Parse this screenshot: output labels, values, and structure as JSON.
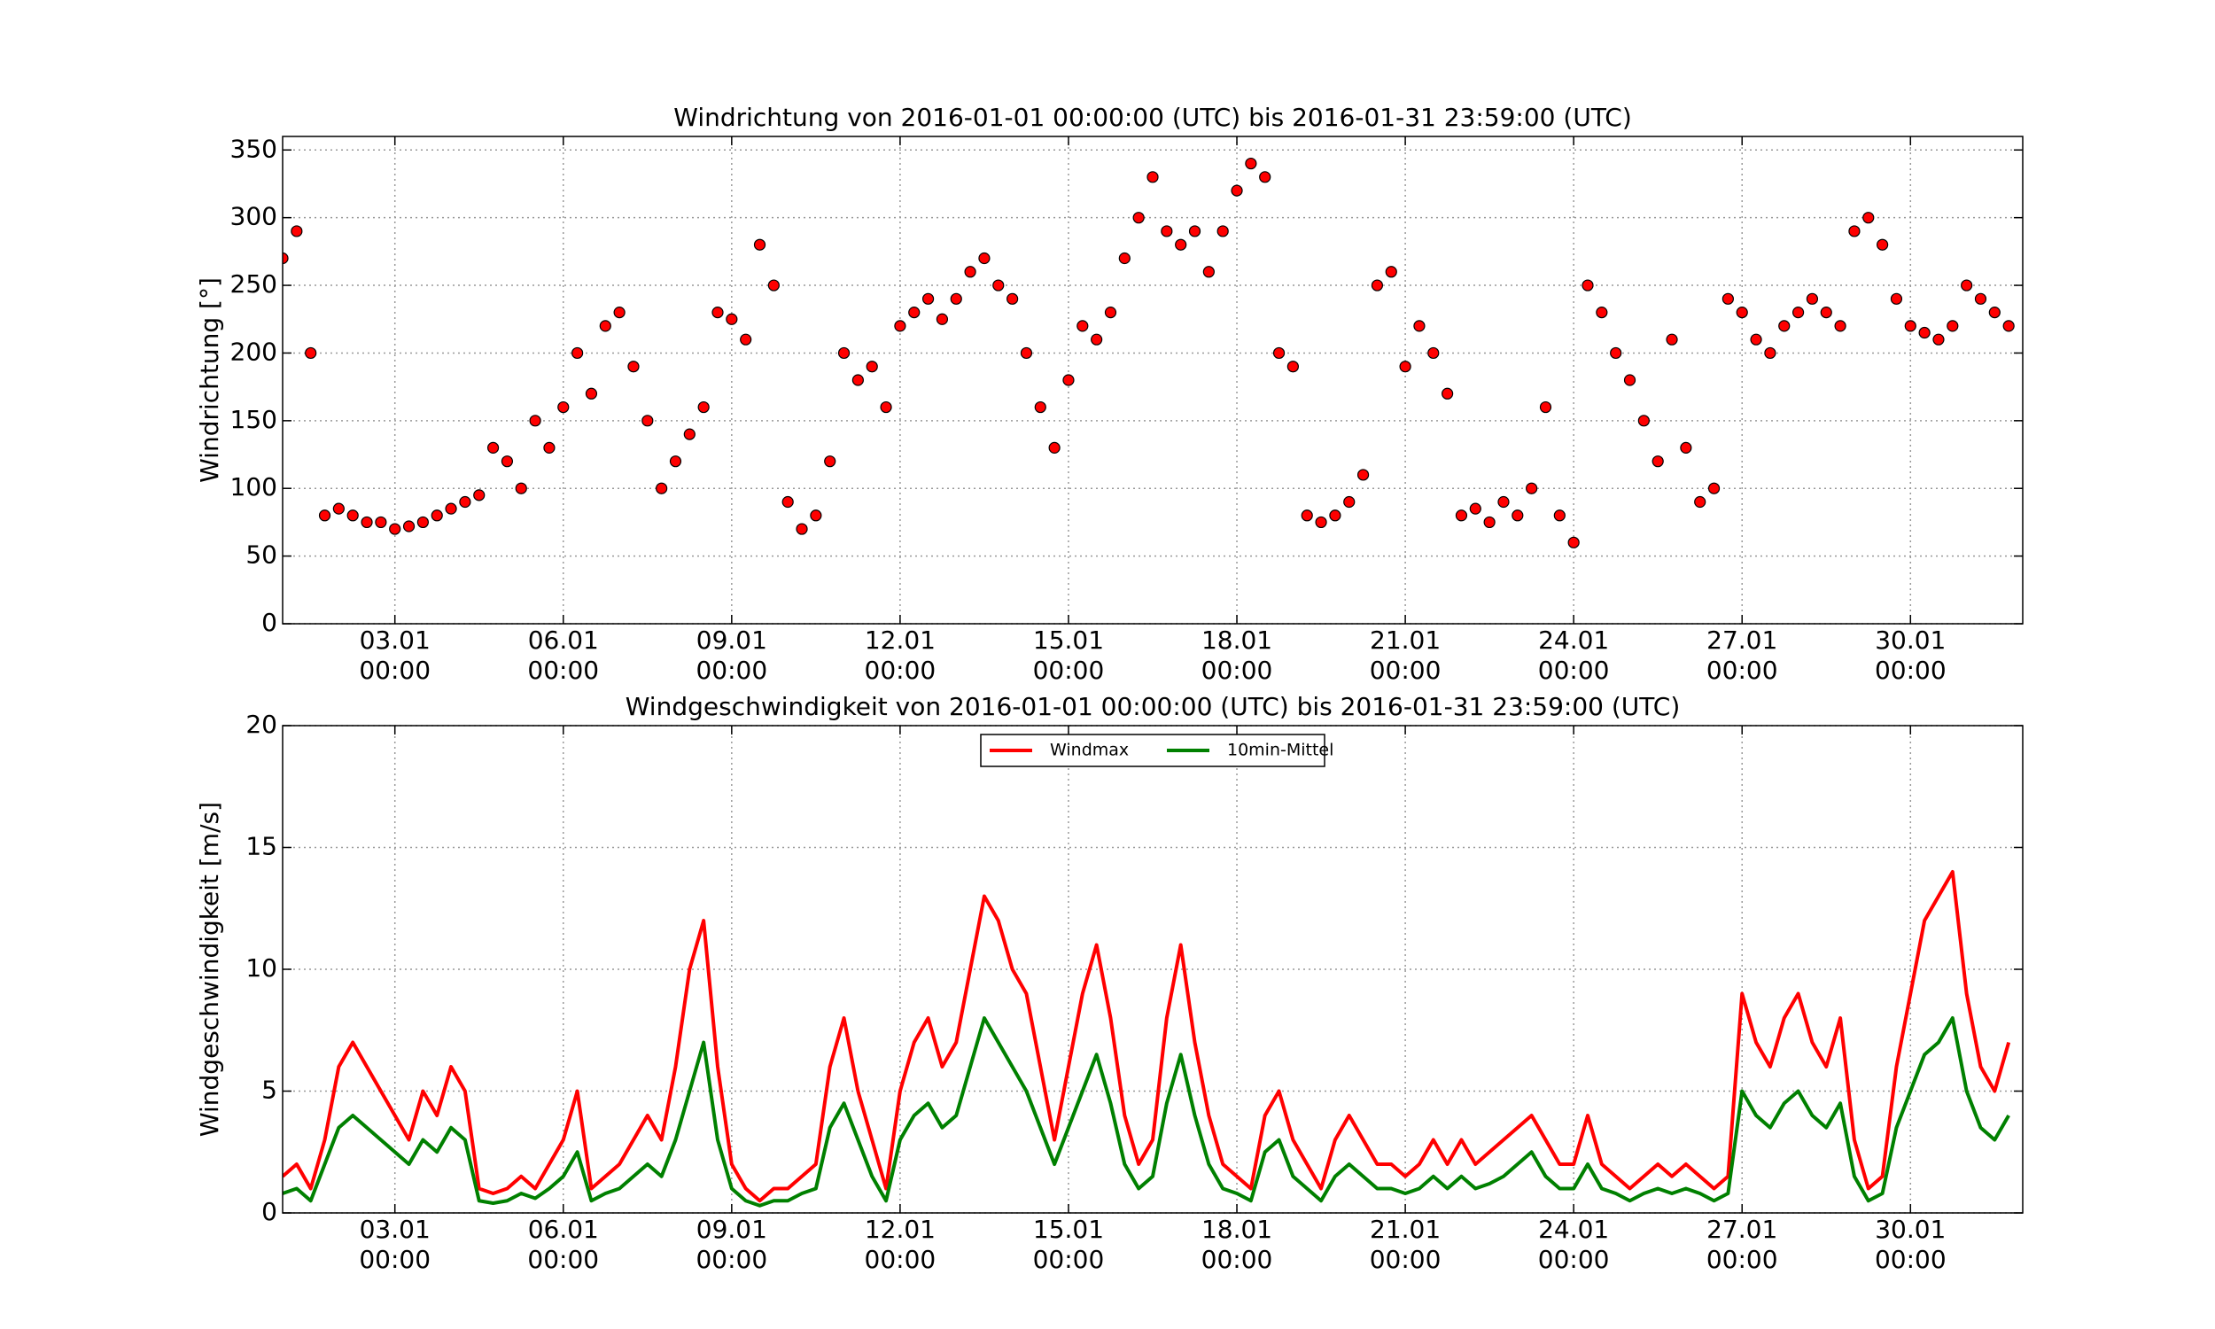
{
  "chart_data": [
    {
      "type": "scatter",
      "title": "Windrichtung von 2016-01-01 00:00:00 (UTC) bis 2016-01-31 23:59:00 (UTC)",
      "y_label": "Windrichtung [°]",
      "color": "#ff0000",
      "edgecolor": "#000000",
      "grid": true,
      "xlim": [
        "2016-01-01 00:00",
        "2016-02-01 00:00"
      ],
      "ylim": [
        0,
        360
      ],
      "yticks": [
        0,
        50,
        100,
        150,
        200,
        250,
        300,
        350
      ],
      "xticks": [
        {
          "value": "2016-01-03 00:00",
          "label": [
            "03.01",
            "00:00"
          ]
        },
        {
          "value": "2016-01-06 00:00",
          "label": [
            "06.01",
            "00:00"
          ]
        },
        {
          "value": "2016-01-09 00:00",
          "label": [
            "09.01",
            "00:00"
          ]
        },
        {
          "value": "2016-01-12 00:00",
          "label": [
            "12.01",
            "00:00"
          ]
        },
        {
          "value": "2016-01-15 00:00",
          "label": [
            "15.01",
            "00:00"
          ]
        },
        {
          "value": "2016-01-18 00:00",
          "label": [
            "18.01",
            "00:00"
          ]
        },
        {
          "value": "2016-01-21 00:00",
          "label": [
            "21.01",
            "00:00"
          ]
        },
        {
          "value": "2016-01-24 00:00",
          "label": [
            "24.01",
            "00:00"
          ]
        },
        {
          "value": "2016-01-27 00:00",
          "label": [
            "27.01",
            "00:00"
          ]
        },
        {
          "value": "2016-01-30 00:00",
          "label": [
            "30.01",
            "00:00"
          ]
        }
      ],
      "x": [
        "2016-01-01 00:00",
        "2016-01-01 06:00",
        "2016-01-01 12:00",
        "2016-01-01 18:00",
        "2016-01-02 00:00",
        "2016-01-02 06:00",
        "2016-01-02 12:00",
        "2016-01-02 18:00",
        "2016-01-03 00:00",
        "2016-01-03 06:00",
        "2016-01-03 12:00",
        "2016-01-03 18:00",
        "2016-01-04 00:00",
        "2016-01-04 06:00",
        "2016-01-04 12:00",
        "2016-01-04 18:00",
        "2016-01-05 00:00",
        "2016-01-05 06:00",
        "2016-01-05 12:00",
        "2016-01-05 18:00",
        "2016-01-06 00:00",
        "2016-01-06 06:00",
        "2016-01-06 12:00",
        "2016-01-06 18:00",
        "2016-01-07 00:00",
        "2016-01-07 06:00",
        "2016-01-07 12:00",
        "2016-01-07 18:00",
        "2016-01-08 00:00",
        "2016-01-08 06:00",
        "2016-01-08 12:00",
        "2016-01-08 18:00",
        "2016-01-09 00:00",
        "2016-01-09 06:00",
        "2016-01-09 12:00",
        "2016-01-09 18:00",
        "2016-01-10 00:00",
        "2016-01-10 06:00",
        "2016-01-10 12:00",
        "2016-01-10 18:00",
        "2016-01-11 00:00",
        "2016-01-11 06:00",
        "2016-01-11 12:00",
        "2016-01-11 18:00",
        "2016-01-12 00:00",
        "2016-01-12 06:00",
        "2016-01-12 12:00",
        "2016-01-12 18:00",
        "2016-01-13 00:00",
        "2016-01-13 06:00",
        "2016-01-13 12:00",
        "2016-01-13 18:00",
        "2016-01-14 00:00",
        "2016-01-14 06:00",
        "2016-01-14 12:00",
        "2016-01-14 18:00",
        "2016-01-15 00:00",
        "2016-01-15 06:00",
        "2016-01-15 12:00",
        "2016-01-15 18:00",
        "2016-01-16 00:00",
        "2016-01-16 06:00",
        "2016-01-16 12:00",
        "2016-01-16 18:00",
        "2016-01-17 00:00",
        "2016-01-17 06:00",
        "2016-01-17 12:00",
        "2016-01-17 18:00",
        "2016-01-18 00:00",
        "2016-01-18 06:00",
        "2016-01-18 12:00",
        "2016-01-18 18:00",
        "2016-01-19 00:00",
        "2016-01-19 06:00",
        "2016-01-19 12:00",
        "2016-01-19 18:00",
        "2016-01-20 00:00",
        "2016-01-20 06:00",
        "2016-01-20 12:00",
        "2016-01-20 18:00",
        "2016-01-21 00:00",
        "2016-01-21 06:00",
        "2016-01-21 12:00",
        "2016-01-21 18:00",
        "2016-01-22 00:00",
        "2016-01-22 06:00",
        "2016-01-22 12:00",
        "2016-01-22 18:00",
        "2016-01-23 00:00",
        "2016-01-23 06:00",
        "2016-01-23 12:00",
        "2016-01-23 18:00",
        "2016-01-24 00:00",
        "2016-01-24 06:00",
        "2016-01-24 12:00",
        "2016-01-24 18:00",
        "2016-01-25 00:00",
        "2016-01-25 06:00",
        "2016-01-25 12:00",
        "2016-01-25 18:00",
        "2016-01-26 00:00",
        "2016-01-26 06:00",
        "2016-01-26 12:00",
        "2016-01-26 18:00",
        "2016-01-27 00:00",
        "2016-01-27 06:00",
        "2016-01-27 12:00",
        "2016-01-27 18:00",
        "2016-01-28 00:00",
        "2016-01-28 06:00",
        "2016-01-28 12:00",
        "2016-01-28 18:00",
        "2016-01-29 00:00",
        "2016-01-29 06:00",
        "2016-01-29 12:00",
        "2016-01-29 18:00",
        "2016-01-30 00:00",
        "2016-01-30 06:00",
        "2016-01-30 12:00",
        "2016-01-30 18:00",
        "2016-01-31 00:00",
        "2016-01-31 06:00",
        "2016-01-31 12:00",
        "2016-01-31 18:00"
      ],
      "values": [
        270,
        290,
        200,
        80,
        85,
        80,
        75,
        75,
        70,
        72,
        75,
        80,
        85,
        90,
        95,
        130,
        120,
        100,
        150,
        130,
        160,
        200,
        170,
        220,
        230,
        190,
        150,
        100,
        120,
        140,
        160,
        230,
        225,
        210,
        280,
        250,
        90,
        70,
        80,
        120,
        200,
        180,
        190,
        160,
        220,
        230,
        240,
        225,
        240,
        260,
        270,
        250,
        240,
        200,
        160,
        130,
        180,
        220,
        210,
        230,
        270,
        300,
        330,
        290,
        280,
        290,
        260,
        290,
        320,
        340,
        330,
        200,
        190,
        80,
        75,
        80,
        90,
        110,
        250,
        260,
        190,
        220,
        200,
        170,
        80,
        85,
        75,
        90,
        80,
        100,
        160,
        80,
        60,
        250,
        230,
        200,
        180,
        150,
        120,
        210,
        130,
        90,
        100,
        240,
        230,
        210,
        200,
        220,
        230,
        240,
        230,
        220,
        290,
        300,
        280,
        240,
        220,
        215,
        210,
        220,
        250,
        240,
        230,
        220
      ]
    },
    {
      "type": "line",
      "title": "Windgeschwindigkeit von 2016-01-01 00:00:00 (UTC) bis 2016-01-31 23:59:00 (UTC)",
      "y_label": "Windgeschwindigkeit [m/s]",
      "grid": true,
      "legend": "upper center",
      "xlim": [
        "2016-01-01 00:00",
        "2016-02-01 00:00"
      ],
      "ylim": [
        0,
        20
      ],
      "yticks": [
        0,
        5,
        10,
        15,
        20
      ],
      "xticks": [
        {
          "value": "2016-01-03 00:00",
          "label": [
            "03.01",
            "00:00"
          ]
        },
        {
          "value": "2016-01-06 00:00",
          "label": [
            "06.01",
            "00:00"
          ]
        },
        {
          "value": "2016-01-09 00:00",
          "label": [
            "09.01",
            "00:00"
          ]
        },
        {
          "value": "2016-01-12 00:00",
          "label": [
            "12.01",
            "00:00"
          ]
        },
        {
          "value": "2016-01-15 00:00",
          "label": [
            "15.01",
            "00:00"
          ]
        },
        {
          "value": "2016-01-18 00:00",
          "label": [
            "18.01",
            "00:00"
          ]
        },
        {
          "value": "2016-01-21 00:00",
          "label": [
            "21.01",
            "00:00"
          ]
        },
        {
          "value": "2016-01-24 00:00",
          "label": [
            "24.01",
            "00:00"
          ]
        },
        {
          "value": "2016-01-27 00:00",
          "label": [
            "27.01",
            "00:00"
          ]
        },
        {
          "value": "2016-01-30 00:00",
          "label": [
            "30.01",
            "00:00"
          ]
        }
      ],
      "x": [
        "2016-01-01 00:00",
        "2016-01-01 06:00",
        "2016-01-01 12:00",
        "2016-01-01 18:00",
        "2016-01-02 00:00",
        "2016-01-02 06:00",
        "2016-01-02 12:00",
        "2016-01-02 18:00",
        "2016-01-03 00:00",
        "2016-01-03 06:00",
        "2016-01-03 12:00",
        "2016-01-03 18:00",
        "2016-01-04 00:00",
        "2016-01-04 06:00",
        "2016-01-04 12:00",
        "2016-01-04 18:00",
        "2016-01-05 00:00",
        "2016-01-05 06:00",
        "2016-01-05 12:00",
        "2016-01-05 18:00",
        "2016-01-06 00:00",
        "2016-01-06 06:00",
        "2016-01-06 12:00",
        "2016-01-06 18:00",
        "2016-01-07 00:00",
        "2016-01-07 06:00",
        "2016-01-07 12:00",
        "2016-01-07 18:00",
        "2016-01-08 00:00",
        "2016-01-08 06:00",
        "2016-01-08 12:00",
        "2016-01-08 18:00",
        "2016-01-09 00:00",
        "2016-01-09 06:00",
        "2016-01-09 12:00",
        "2016-01-09 18:00",
        "2016-01-10 00:00",
        "2016-01-10 06:00",
        "2016-01-10 12:00",
        "2016-01-10 18:00",
        "2016-01-11 00:00",
        "2016-01-11 06:00",
        "2016-01-11 12:00",
        "2016-01-11 18:00",
        "2016-01-12 00:00",
        "2016-01-12 06:00",
        "2016-01-12 12:00",
        "2016-01-12 18:00",
        "2016-01-13 00:00",
        "2016-01-13 06:00",
        "2016-01-13 12:00",
        "2016-01-13 18:00",
        "2016-01-14 00:00",
        "2016-01-14 06:00",
        "2016-01-14 12:00",
        "2016-01-14 18:00",
        "2016-01-15 00:00",
        "2016-01-15 06:00",
        "2016-01-15 12:00",
        "2016-01-15 18:00",
        "2016-01-16 00:00",
        "2016-01-16 06:00",
        "2016-01-16 12:00",
        "2016-01-16 18:00",
        "2016-01-17 00:00",
        "2016-01-17 06:00",
        "2016-01-17 12:00",
        "2016-01-17 18:00",
        "2016-01-18 00:00",
        "2016-01-18 06:00",
        "2016-01-18 12:00",
        "2016-01-18 18:00",
        "2016-01-19 00:00",
        "2016-01-19 06:00",
        "2016-01-19 12:00",
        "2016-01-19 18:00",
        "2016-01-20 00:00",
        "2016-01-20 06:00",
        "2016-01-20 12:00",
        "2016-01-20 18:00",
        "2016-01-21 00:00",
        "2016-01-21 06:00",
        "2016-01-21 12:00",
        "2016-01-21 18:00",
        "2016-01-22 00:00",
        "2016-01-22 06:00",
        "2016-01-22 12:00",
        "2016-01-22 18:00",
        "2016-01-23 00:00",
        "2016-01-23 06:00",
        "2016-01-23 12:00",
        "2016-01-23 18:00",
        "2016-01-24 00:00",
        "2016-01-24 06:00",
        "2016-01-24 12:00",
        "2016-01-24 18:00",
        "2016-01-25 00:00",
        "2016-01-25 06:00",
        "2016-01-25 12:00",
        "2016-01-25 18:00",
        "2016-01-26 00:00",
        "2016-01-26 06:00",
        "2016-01-26 12:00",
        "2016-01-26 18:00",
        "2016-01-27 00:00",
        "2016-01-27 06:00",
        "2016-01-27 12:00",
        "2016-01-27 18:00",
        "2016-01-28 00:00",
        "2016-01-28 06:00",
        "2016-01-28 12:00",
        "2016-01-28 18:00",
        "2016-01-29 00:00",
        "2016-01-29 06:00",
        "2016-01-29 12:00",
        "2016-01-29 18:00",
        "2016-01-30 00:00",
        "2016-01-30 06:00",
        "2016-01-30 12:00",
        "2016-01-30 18:00",
        "2016-01-31 00:00",
        "2016-01-31 06:00",
        "2016-01-31 12:00",
        "2016-01-31 18:00"
      ],
      "series": [
        {
          "name": "Windmax",
          "color": "#ff0000",
          "values": [
            1.5,
            2,
            1,
            3,
            6,
            7,
            6,
            5,
            4,
            3,
            5,
            4,
            6,
            5,
            1,
            0.8,
            1,
            1.5,
            1,
            2,
            3,
            5,
            1,
            1.5,
            2,
            3,
            4,
            3,
            6,
            10,
            12,
            6,
            2,
            1,
            0.5,
            1,
            1,
            1.5,
            2,
            6,
            8,
            5,
            3,
            1,
            5,
            7,
            8,
            6,
            7,
            10,
            13,
            12,
            10,
            9,
            6,
            3,
            6,
            9,
            11,
            8,
            4,
            2,
            3,
            8,
            11,
            7,
            4,
            2,
            1.5,
            1,
            4,
            5,
            3,
            2,
            1,
            3,
            4,
            3,
            2,
            2,
            1.5,
            2,
            3,
            2,
            3,
            2,
            2.5,
            3,
            3.5,
            4,
            3,
            2,
            2,
            4,
            2,
            1.5,
            1,
            1.5,
            2,
            1.5,
            2,
            1.5,
            1,
            1.5,
            9,
            7,
            6,
            8,
            9,
            7,
            6,
            8,
            3,
            1,
            1.5,
            6,
            9,
            12,
            13,
            14,
            9,
            6,
            5,
            7
          ]
        },
        {
          "name": "10min-Mittel",
          "color": "#008000",
          "values": [
            0.8,
            1,
            0.5,
            2,
            3.5,
            4,
            3.5,
            3,
            2.5,
            2,
            3,
            2.5,
            3.5,
            3,
            0.5,
            0.4,
            0.5,
            0.8,
            0.6,
            1,
            1.5,
            2.5,
            0.5,
            0.8,
            1,
            1.5,
            2,
            1.5,
            3,
            5,
            7,
            3,
            1,
            0.5,
            0.3,
            0.5,
            0.5,
            0.8,
            1,
            3.5,
            4.5,
            3,
            1.5,
            0.5,
            3,
            4,
            4.5,
            3.5,
            4,
            6,
            8,
            7,
            6,
            5,
            3.5,
            2,
            3.5,
            5,
            6.5,
            4.5,
            2,
            1,
            1.5,
            4.5,
            6.5,
            4,
            2,
            1,
            0.8,
            0.5,
            2.5,
            3,
            1.5,
            1,
            0.5,
            1.5,
            2,
            1.5,
            1,
            1,
            0.8,
            1,
            1.5,
            1,
            1.5,
            1,
            1.2,
            1.5,
            2,
            2.5,
            1.5,
            1,
            1,
            2,
            1,
            0.8,
            0.5,
            0.8,
            1,
            0.8,
            1,
            0.8,
            0.5,
            0.8,
            5,
            4,
            3.5,
            4.5,
            5,
            4,
            3.5,
            4.5,
            1.5,
            0.5,
            0.8,
            3.5,
            5,
            6.5,
            7,
            8,
            5,
            3.5,
            3,
            4
          ]
        }
      ]
    }
  ]
}
